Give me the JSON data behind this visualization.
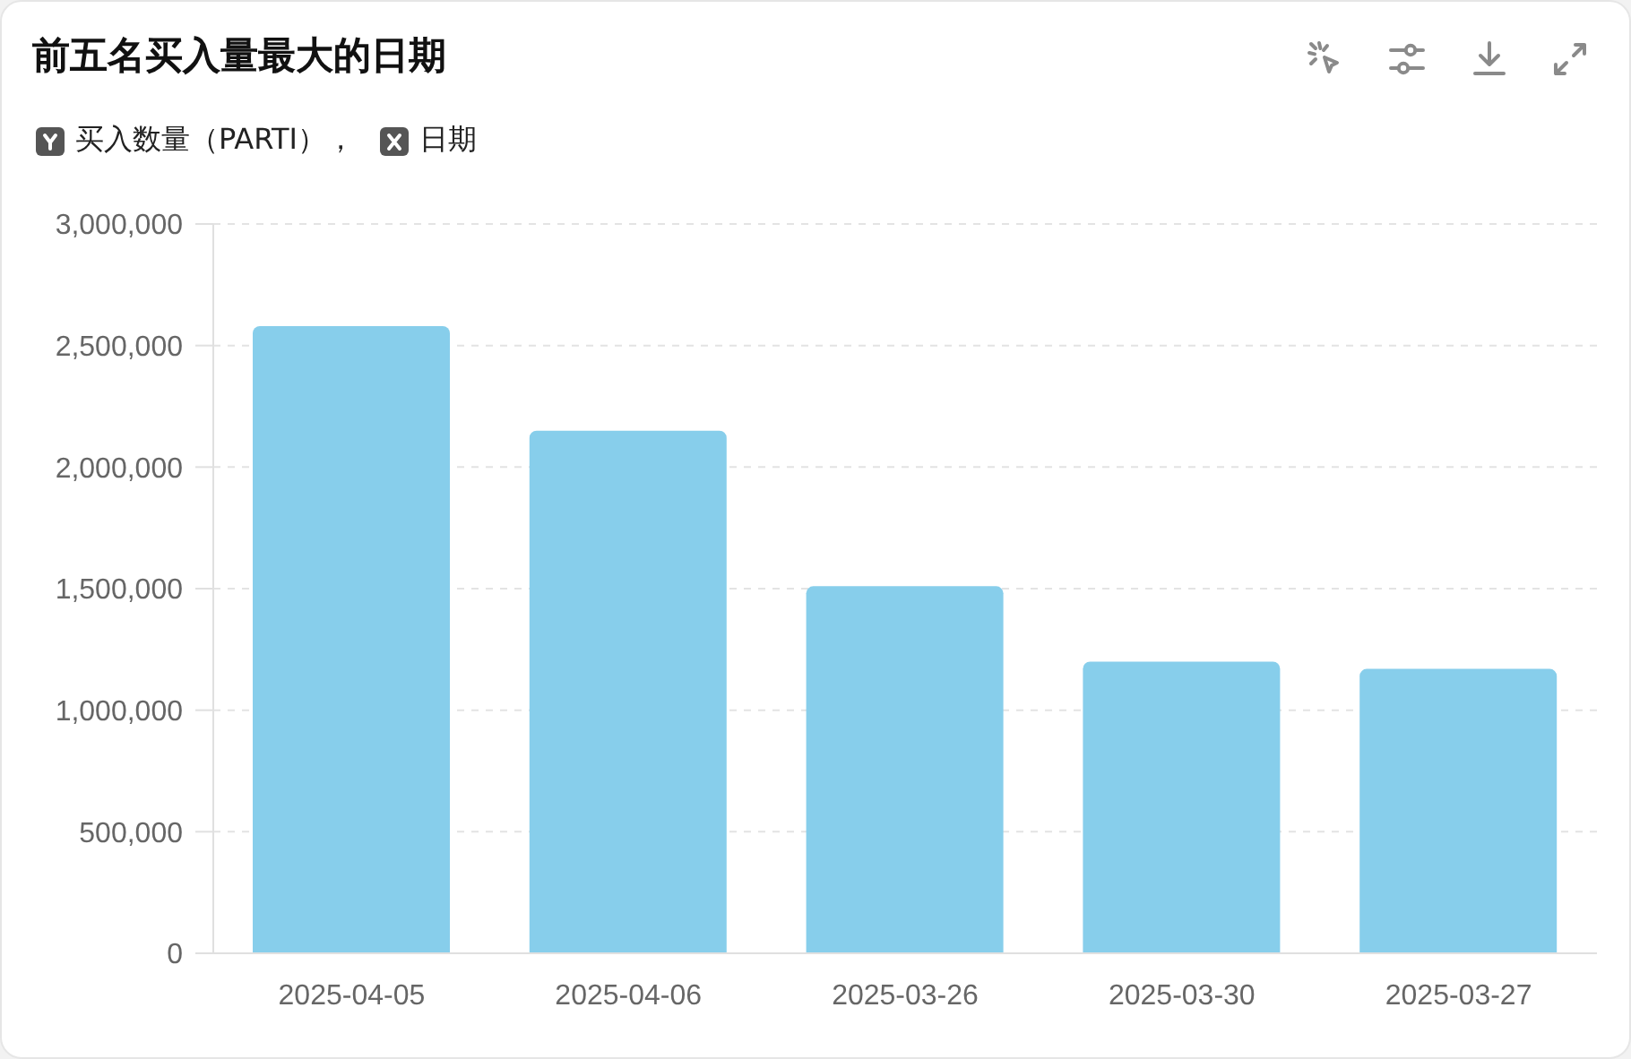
{
  "chart_data": {
    "type": "bar",
    "title": "前五名买入量最大的日期",
    "ylabel": "买入数量（PARTI），",
    "xlabel": "日期",
    "categories": [
      "2025-04-05",
      "2025-04-06",
      "2025-03-26",
      "2025-03-30",
      "2025-03-27"
    ],
    "values": [
      2580000,
      2150000,
      1510000,
      1200000,
      1170000
    ],
    "color": "#87ceeb",
    "ylim": [
      0,
      3000000
    ],
    "yticks": [
      0,
      {
        "value": 500000,
        "label": "500,000"
      },
      {
        "value": 1000000,
        "label": "1,000,000"
      },
      {
        "value": 1500000,
        "label": "1,500,000"
      },
      {
        "value": 2000000,
        "label": "2,000,000"
      },
      {
        "value": 2500000,
        "label": "2,500,000"
      },
      {
        "value": 3000000,
        "label": "3,000,000"
      }
    ],
    "grid": "y"
  }
}
